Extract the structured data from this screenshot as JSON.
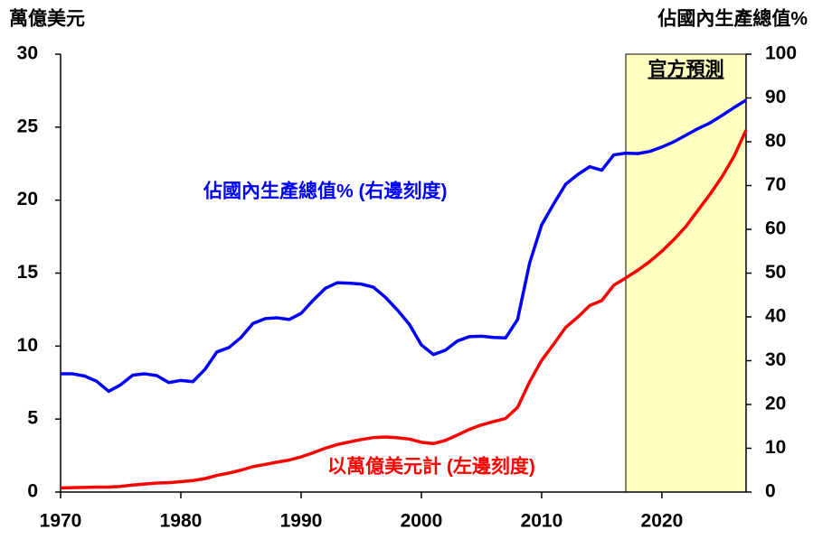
{
  "chart_data": {
    "type": "line",
    "y_label": "萬億美元",
    "y2_label": "佔國內生產總值%",
    "annotations": [
      "佔國內生產總值% (右邊刻度)",
      "以萬億美元計 (左邊刻度)",
      "官方預測"
    ],
    "forecast_region": [
      2017,
      2027
    ],
    "forecast_color": "#ffffc0",
    "x": [
      1970,
      1971,
      1972,
      1973,
      1974,
      1975,
      1976,
      1977,
      1978,
      1979,
      1980,
      1981,
      1982,
      1983,
      1984,
      1985,
      1986,
      1987,
      1988,
      1989,
      1990,
      1991,
      1992,
      1993,
      1994,
      1995,
      1996,
      1997,
      1998,
      1999,
      2000,
      2001,
      2002,
      2003,
      2004,
      2005,
      2006,
      2007,
      2008,
      2009,
      2010,
      2011,
      2012,
      2013,
      2014,
      2015,
      2016,
      2017,
      2018,
      2019,
      2020,
      2021,
      2022,
      2023,
      2024,
      2025,
      2026,
      2027
    ],
    "series": [
      {
        "name": "佔國內生產總值%",
        "color": "#0000ff",
        "axis": "y2",
        "values": [
          27,
          27,
          26.5,
          25.3,
          23,
          24.5,
          26.7,
          27,
          26.6,
          25,
          25.5,
          25.2,
          28,
          32,
          33,
          35.3,
          38.5,
          39.6,
          39.8,
          39.4,
          40.8,
          43.8,
          46.5,
          47.8,
          47.7,
          47.5,
          46.8,
          44.5,
          41.6,
          38.3,
          33.6,
          31.4,
          32.4,
          34.5,
          35.5,
          35.6,
          35.3,
          35.2,
          39.4,
          52.3,
          61,
          65.8,
          70.3,
          72.5,
          74.3,
          73.5,
          77,
          77.4,
          77.3,
          77.8,
          78.8,
          80,
          81.5,
          83,
          84.3,
          86,
          87.8,
          89.5
        ]
      },
      {
        "name": "以萬億美元計",
        "color": "#ff0000",
        "values": [
          0.28,
          0.3,
          0.32,
          0.34,
          0.34,
          0.39,
          0.48,
          0.55,
          0.62,
          0.64,
          0.71,
          0.79,
          0.92,
          1.14,
          1.3,
          1.5,
          1.74,
          1.89,
          2.05,
          2.19,
          2.41,
          2.69,
          3.0,
          3.25,
          3.43,
          3.6,
          3.73,
          3.77,
          3.72,
          3.63,
          3.41,
          3.32,
          3.54,
          3.91,
          4.3,
          4.6,
          4.83,
          5.04,
          5.8,
          7.55,
          9.02,
          10.13,
          11.28,
          11.98,
          12.78,
          13.12,
          14.17,
          14.67,
          15.2,
          15.8,
          16.5,
          17.3,
          18.2,
          19.3,
          20.4,
          21.6,
          23.0,
          24.8
        ]
      }
    ],
    "xlim": [
      1970,
      2027
    ],
    "xticks": [
      1970,
      1980,
      1990,
      2000,
      2010,
      2020
    ],
    "ylim": [
      0,
      30
    ],
    "yticks": [
      0,
      5,
      10,
      15,
      20,
      25,
      30
    ],
    "y2lim": [
      0,
      100
    ],
    "y2ticks": [
      0,
      10,
      20,
      30,
      40,
      50,
      60,
      70,
      80,
      90,
      100
    ]
  }
}
